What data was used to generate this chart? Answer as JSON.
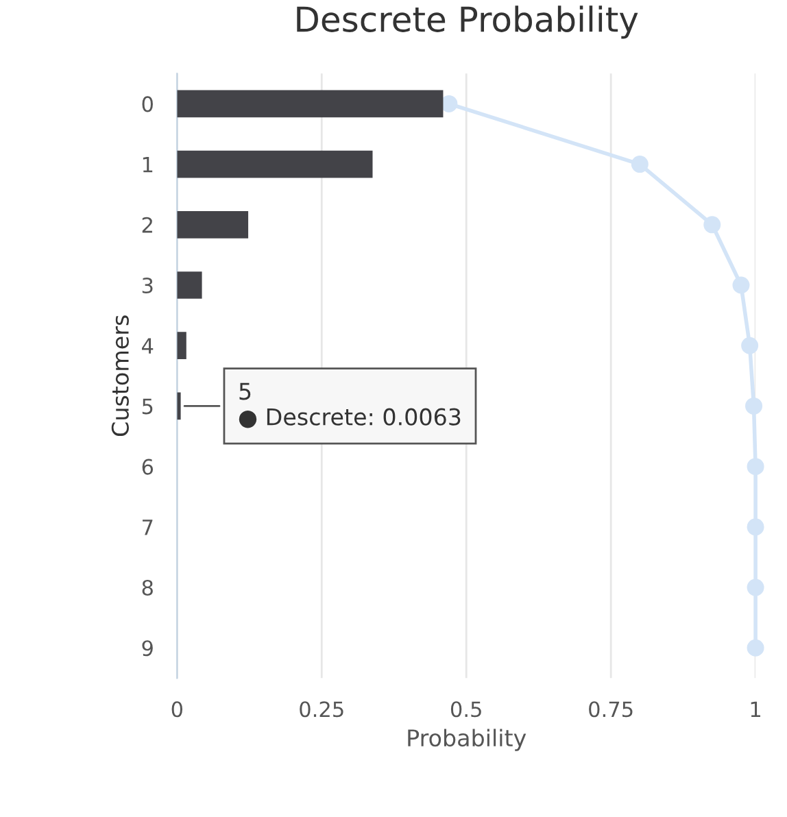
{
  "chart_data": {
    "type": "bar",
    "orientation": "horizontal",
    "title": "Descrete Probability",
    "xlabel": "Probability",
    "ylabel": "Customers",
    "categories": [
      "0",
      "1",
      "2",
      "3",
      "4",
      "5",
      "6",
      "7",
      "8",
      "9"
    ],
    "series": [
      {
        "color": "#434348",
        "values": [
          0.46,
          0.338,
          0.123,
          0.043,
          0.016,
          0.0063,
          0,
          0,
          0,
          0
        ]
      },
      {
        "type": "line",
        "color": "#d3e4f7",
        "marker": "circle",
        "values": [
          0.47,
          0.8,
          0.925,
          0.975,
          0.99,
          0.997,
          1,
          1,
          1,
          1
        ]
      }
    ],
    "xlim": [
      0,
      1
    ],
    "xticks": [
      0,
      0.25,
      0.5,
      0.75,
      1
    ],
    "grid": "x",
    "legend": false,
    "annotations": [
      {
        "text": "5\n● Descrete: 0.0063",
        "x": 0.0063,
        "y": "5"
      }
    ]
  }
}
